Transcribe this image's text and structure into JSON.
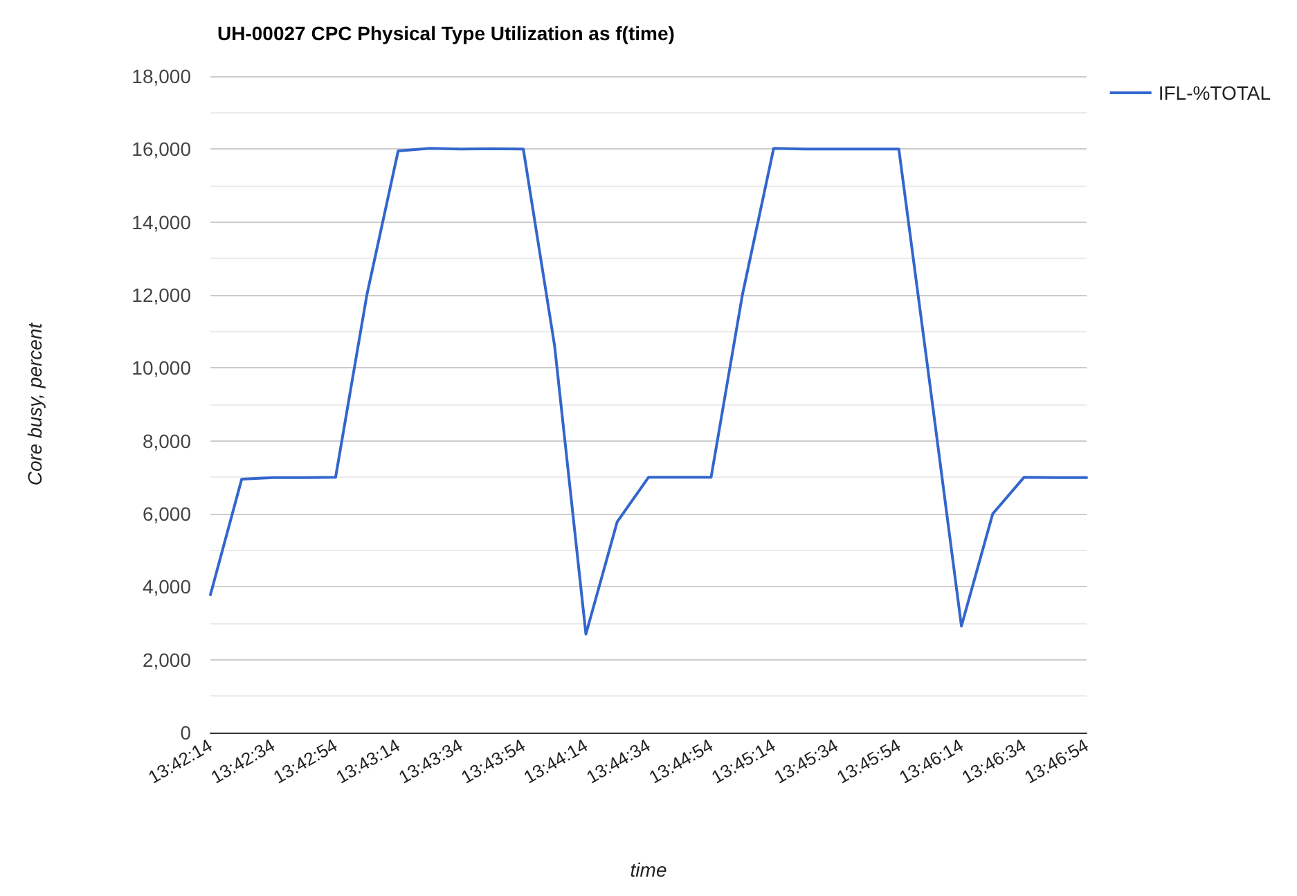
{
  "chart_data": {
    "type": "line",
    "title": "UH-00027 CPC Physical Type Utilization as f(time)",
    "xlabel": "time",
    "ylabel": "Core busy, percent",
    "categories": [
      "13:42:14",
      null,
      "13:42:34",
      null,
      "13:42:54",
      null,
      "13:43:14",
      null,
      "13:43:34",
      null,
      "13:43:54",
      null,
      "13:44:14",
      null,
      "13:44:34",
      null,
      "13:44:54",
      null,
      "13:45:14",
      null,
      "13:45:34",
      null,
      "13:45:54",
      null,
      "13:46:14",
      null,
      "13:46:34",
      null,
      "13:46:54"
    ],
    "series": [
      {
        "name": "IFL-%TOTAL",
        "color": "#3366cc",
        "values": [
          3780,
          6950,
          6990,
          6990,
          7000,
          12000,
          15950,
          16020,
          16000,
          16010,
          16000,
          10600,
          2700,
          5780,
          7000,
          7000,
          7000,
          12000,
          16020,
          16000,
          16000,
          16000,
          16000,
          9500,
          2920,
          6000,
          7000,
          6990,
          6990
        ]
      }
    ],
    "ylim": [
      0,
      18000
    ],
    "yticks": [
      {
        "value": 0,
        "label": "0"
      },
      {
        "value": 1000,
        "label": null
      },
      {
        "value": 2000,
        "label": "2,000"
      },
      {
        "value": 3000,
        "label": null
      },
      {
        "value": 4000,
        "label": "4,000"
      },
      {
        "value": 5000,
        "label": null
      },
      {
        "value": 6000,
        "label": "6,000"
      },
      {
        "value": 7000,
        "label": null
      },
      {
        "value": 8000,
        "label": "8,000"
      },
      {
        "value": 9000,
        "label": null
      },
      {
        "value": 10000,
        "label": "10,000"
      },
      {
        "value": 11000,
        "label": null
      },
      {
        "value": 12000,
        "label": "12,000"
      },
      {
        "value": 13000,
        "label": null
      },
      {
        "value": 14000,
        "label": "14,000"
      },
      {
        "value": 15000,
        "label": null
      },
      {
        "value": 16000,
        "label": "16,000"
      },
      {
        "value": 17000,
        "label": null
      },
      {
        "value": 18000,
        "label": "18,000"
      }
    ],
    "grid": "y",
    "legend": "top right",
    "marker": "none",
    "line_style": "solid"
  }
}
